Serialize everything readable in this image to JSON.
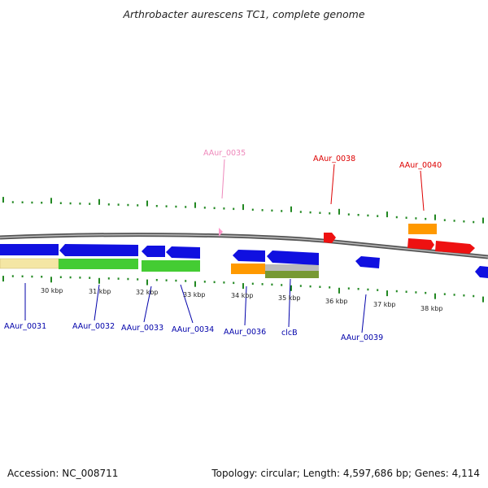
{
  "title": "Arthrobacter aurescens TC1, complete genome",
  "footer": {
    "accession": "Accession: NC_008711",
    "topology": "Topology: circular; Length: 4,597,686 bp; Genes: 4,114"
  },
  "colors": {
    "blue_gene": "#1010e0",
    "red_gene": "#ee1111",
    "orange_gene": "#ff9900",
    "green_gene": "#44cc33",
    "yellow_gene": "#f4e6a4",
    "pink_gene": "#ff99cc",
    "gray_gene": "#bbbbbb",
    "olive_gene": "#779933",
    "tick_green": "#228822",
    "label_blue": "#0000aa",
    "label_red": "#dd0000",
    "label_pink": "#ee88bb"
  },
  "scale": {
    "ticks": [
      "30 kbp",
      "31 kbp",
      "32 kbp",
      "33 kbp",
      "34 kbp",
      "35 kbp",
      "36 kbp",
      "37 kbp",
      "38 kbp"
    ]
  },
  "labels": {
    "AAur_0031": "AAur_0031",
    "AAur_0032": "AAur_0032",
    "AAur_0033": "AAur_0033",
    "AAur_0034": "AAur_0034",
    "AAur_0035": "AAur_0035",
    "AAur_0036": "AAur_0036",
    "clcB": "clcB",
    "AAur_0038": "AAur_0038",
    "AAur_0039": "AAur_0039",
    "AAur_0040": "AAur_0040"
  }
}
